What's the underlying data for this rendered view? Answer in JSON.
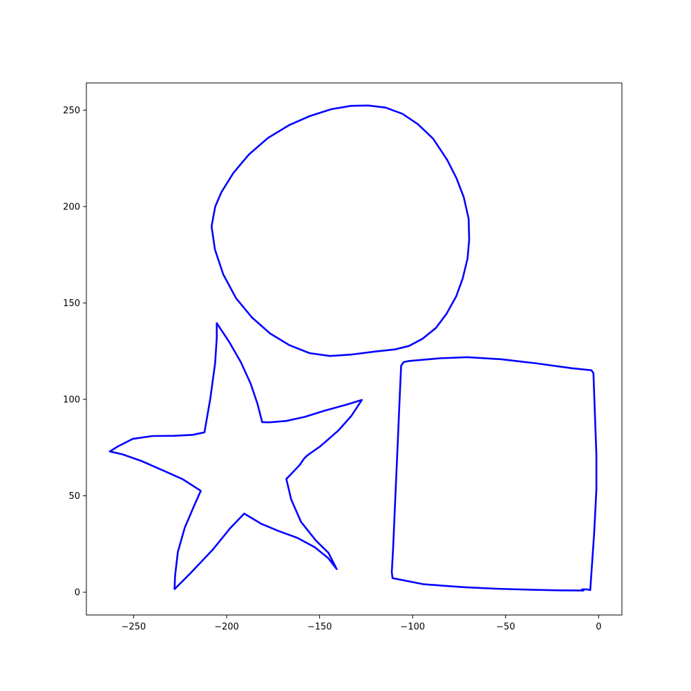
{
  "chart_data": {
    "type": "line",
    "title": "",
    "xlabel": "",
    "ylabel": "",
    "xlim": [
      -275.4,
      12.5
    ],
    "ylim": [
      -11.8,
      264.1
    ],
    "grid": false,
    "legend": "none",
    "x_ticks": [
      -250,
      -200,
      -150,
      -100,
      -50,
      0
    ],
    "x_tick_labels": [
      "−250",
      "−200",
      "−150",
      "−100",
      "−50",
      "0"
    ],
    "y_ticks": [
      0,
      50,
      100,
      150,
      200,
      250
    ],
    "y_tick_labels": [
      "0",
      "50",
      "100",
      "150",
      "200",
      "250"
    ],
    "series": [
      {
        "color": "#0000ff",
        "points": [
          [
            -109.6,
            125.9
          ],
          [
            -102.0,
            127.7
          ],
          [
            -94.7,
            131.4
          ],
          [
            -87.5,
            137.0
          ],
          [
            -81.7,
            144.5
          ],
          [
            -76.6,
            153.4
          ],
          [
            -73.1,
            162.7
          ],
          [
            -70.5,
            173.0
          ],
          [
            -69.6,
            182.8
          ],
          [
            -69.9,
            193.7
          ],
          [
            -72.5,
            204.8
          ],
          [
            -76.4,
            214.6
          ],
          [
            -81.5,
            224.3
          ],
          [
            -89.0,
            235.2
          ],
          [
            -97.2,
            242.7
          ],
          [
            -105.5,
            248.1
          ],
          [
            -114.6,
            251.3
          ],
          [
            -123.8,
            252.4
          ],
          [
            -133.1,
            252.2
          ],
          [
            -143.7,
            250.5
          ],
          [
            -155.3,
            246.9
          ],
          [
            -166.2,
            242.3
          ],
          [
            -177.7,
            235.6
          ],
          [
            -188.0,
            227.0
          ],
          [
            -196.4,
            217.4
          ],
          [
            -202.8,
            207.4
          ],
          [
            -206.1,
            200.0
          ],
          [
            -208.1,
            189.7
          ],
          [
            -206.3,
            177.8
          ],
          [
            -201.8,
            164.8
          ],
          [
            -194.9,
            152.4
          ],
          [
            -186.5,
            142.6
          ],
          [
            -176.7,
            134.2
          ],
          [
            -166.2,
            128.1
          ],
          [
            -155.5,
            124.0
          ],
          [
            -144.4,
            122.5
          ],
          [
            -132.6,
            123.3
          ],
          [
            -120.4,
            124.8
          ],
          [
            -109.6,
            125.9
          ]
        ]
      },
      {
        "color": "#0000ff",
        "points": [
          [
            -205.3,
            139.5
          ],
          [
            -198.7,
            129.9
          ],
          [
            -192.3,
            119.2
          ],
          [
            -187.0,
            107.9
          ],
          [
            -183.4,
            97.6
          ],
          [
            -180.9,
            88.2
          ],
          [
            -177.0,
            88.1
          ],
          [
            -168.0,
            88.8
          ],
          [
            -158.1,
            90.9
          ],
          [
            -147.4,
            94.1
          ],
          [
            -134.8,
            97.5
          ],
          [
            -127.3,
            99.7
          ],
          [
            -132.9,
            91.5
          ],
          [
            -140.0,
            83.8
          ],
          [
            -149.6,
            75.7
          ],
          [
            -156.7,
            70.9
          ],
          [
            -158.6,
            69.0
          ],
          [
            -160.7,
            66.0
          ],
          [
            -167.9,
            58.7
          ],
          [
            -165.3,
            48.1
          ],
          [
            -160.0,
            36.5
          ],
          [
            -152.0,
            26.8
          ],
          [
            -145.3,
            20.5
          ],
          [
            -140.8,
            12.0
          ],
          [
            -145.3,
            17.6
          ],
          [
            -152.7,
            23.4
          ],
          [
            -162.0,
            28.2
          ],
          [
            -172.2,
            31.8
          ],
          [
            -181.4,
            35.5
          ],
          [
            -190.5,
            40.8
          ],
          [
            -198.1,
            33.2
          ],
          [
            -207.6,
            21.9
          ],
          [
            -219.5,
            9.8
          ],
          [
            -228.0,
            1.6
          ],
          [
            -227.7,
            8.7
          ],
          [
            -226.2,
            20.9
          ],
          [
            -222.5,
            33.5
          ],
          [
            -217.4,
            45.0
          ],
          [
            -213.9,
            52.6
          ],
          [
            -223.6,
            58.6
          ],
          [
            -234.5,
            63.3
          ],
          [
            -245.9,
            68.1
          ],
          [
            -256.0,
            71.5
          ],
          [
            -262.8,
            73.0
          ],
          [
            -258.5,
            75.6
          ],
          [
            -250.5,
            79.5
          ],
          [
            -240.0,
            81.0
          ],
          [
            -228.5,
            81.1
          ],
          [
            -218.3,
            81.6
          ],
          [
            -211.9,
            82.9
          ],
          [
            -208.8,
            100.3
          ],
          [
            -206.2,
            118.7
          ],
          [
            -205.3,
            131.8
          ],
          [
            -205.3,
            139.5
          ]
        ]
      },
      {
        "color": "#0000ff",
        "points": [
          [
            -106.2,
            117.4
          ],
          [
            -104.9,
            119.3
          ],
          [
            -102.0,
            119.9
          ],
          [
            -85.3,
            121.3
          ],
          [
            -70.6,
            121.9
          ],
          [
            -52.3,
            120.8
          ],
          [
            -34.4,
            118.8
          ],
          [
            -14.7,
            116.2
          ],
          [
            -3.9,
            115.1
          ],
          [
            -2.8,
            113.6
          ],
          [
            -2.3,
            99.7
          ],
          [
            -1.8,
            86.8
          ],
          [
            -1.2,
            70.9
          ],
          [
            -1.2,
            53.4
          ],
          [
            -2.4,
            30.9
          ],
          [
            -4.5,
            1.1
          ],
          [
            -6.4,
            1.5
          ],
          [
            -8.9,
            1.5
          ],
          [
            -8.2,
            0.9
          ],
          [
            -21.8,
            1.0
          ],
          [
            -36.6,
            1.3
          ],
          [
            -55.0,
            1.8
          ],
          [
            -72.2,
            2.6
          ],
          [
            -93.9,
            4.1
          ],
          [
            -110.8,
            7.3
          ],
          [
            -111.2,
            10.4
          ],
          [
            -110.5,
            22.6
          ],
          [
            -109.7,
            40.1
          ],
          [
            -108.8,
            60.4
          ],
          [
            -107.9,
            79.8
          ],
          [
            -107.0,
            100.0
          ],
          [
            -106.2,
            117.4
          ]
        ]
      }
    ]
  }
}
